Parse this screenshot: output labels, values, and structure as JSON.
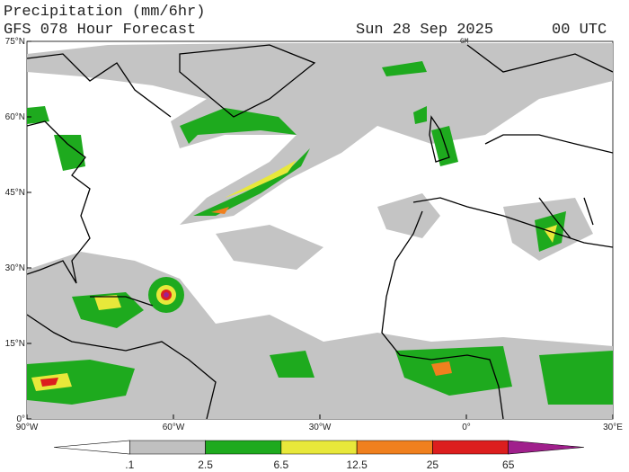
{
  "header": {
    "title": "Precipitation (mm/6hr)",
    "subtitle": "GFS 078 Hour Forecast",
    "date": "Sun 28 Sep 2025",
    "time": "00 UTC"
  },
  "map": {
    "corner_mark": "GM",
    "lat_labels": [
      "75°N",
      "60°N",
      "45°N",
      "30°N",
      "15°N",
      "0°"
    ],
    "lon_labels": [
      "90°W",
      "60°W",
      "30°W",
      "0°",
      "30°E"
    ]
  },
  "colorbar": {
    "labels": [
      ".1",
      "2.5",
      "6.5",
      "12.5",
      "25",
      "65"
    ],
    "colors": [
      "#ffffff",
      "#c0c0c0",
      "#1eaa1e",
      "#e8e83a",
      "#f0801e",
      "#dc1e1e",
      "#a0208c"
    ]
  }
}
